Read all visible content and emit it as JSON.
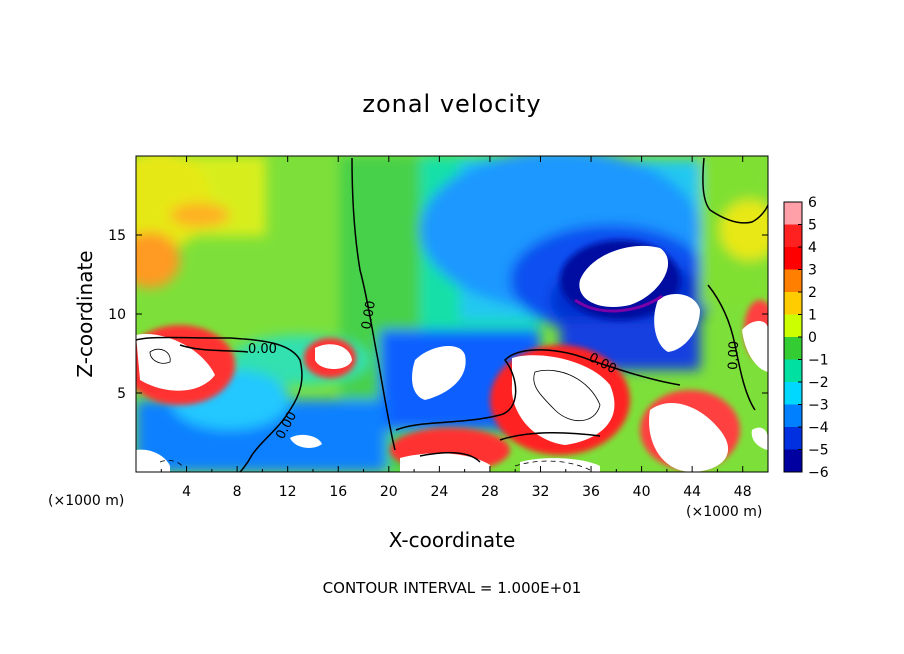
{
  "chart_data": {
    "type": "heatmap",
    "title": "zonal velocity",
    "xlabel": "X-coordinate",
    "ylabel": "Z-coordinate",
    "x_unit": "(×1000 m)",
    "x_unit_right": "(×1000 m)",
    "xlim": [
      0,
      50
    ],
    "ylim": [
      0,
      20
    ],
    "x_ticks": [
      4,
      8,
      12,
      16,
      20,
      24,
      28,
      32,
      36,
      40,
      44,
      48
    ],
    "y_ticks": [
      5,
      10,
      15
    ],
    "colorbar": {
      "levels": [
        6,
        5,
        4,
        3,
        2,
        1,
        0,
        -1,
        -2,
        -3,
        -4,
        -5,
        -6
      ],
      "colors": [
        "#ff9fa8",
        "#ff2020",
        "#ff0000",
        "#ff7f00",
        "#ffcc00",
        "#ccff00",
        "#33cc33",
        "#00e0a0",
        "#00d8ff",
        "#0080ff",
        "#0030e0",
        "#0000a0",
        "#7a00a8"
      ]
    },
    "contour_labels": [
      "0.00",
      "0.00",
      "0.00",
      "0.00",
      "0.00"
    ],
    "note": "CONTOUR INTERVAL = 1.000E+01"
  }
}
